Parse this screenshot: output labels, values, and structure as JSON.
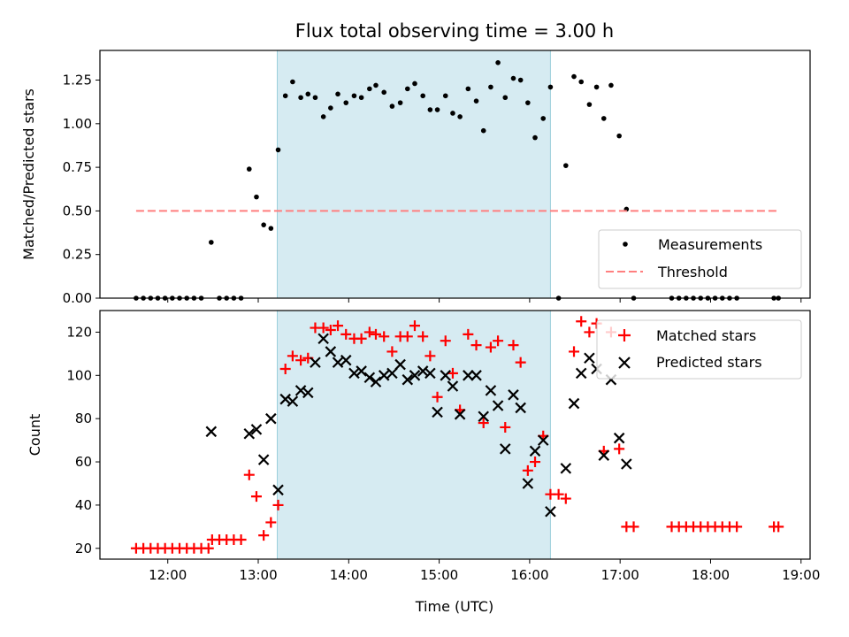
{
  "chart_data": [
    {
      "type": "scatter",
      "title": "Flux total observing time = 3.00 h",
      "ylabel": "Matched/Predicted stars",
      "ylim": [
        0,
        1.42
      ],
      "yticks": [
        0,
        0.25,
        0.5,
        0.75,
        1.0,
        1.25
      ],
      "ytick_labels": [
        "0.00",
        "0.25",
        "0.50",
        "0.75",
        "1.00",
        "1.25"
      ],
      "x_unit": "hours UTC",
      "xlim": [
        11.25,
        19.1
      ],
      "shaded_span": [
        13.21,
        16.23
      ],
      "shade_color": "#add8e6",
      "legend_position": "lower right",
      "series": [
        {
          "name": "Measurements",
          "marker": "dot",
          "color": "#000000",
          "points": [
            [
              11.65,
              0
            ],
            [
              11.73,
              0
            ],
            [
              11.81,
              0
            ],
            [
              11.89,
              0
            ],
            [
              11.97,
              0
            ],
            [
              12.05,
              0
            ],
            [
              12.13,
              0
            ],
            [
              12.21,
              0
            ],
            [
              12.29,
              0
            ],
            [
              12.37,
              0
            ],
            [
              12.48,
              0.32
            ],
            [
              12.57,
              0
            ],
            [
              12.65,
              0
            ],
            [
              12.73,
              0
            ],
            [
              12.81,
              0
            ],
            [
              12.9,
              0.74
            ],
            [
              12.98,
              0.58
            ],
            [
              13.06,
              0.42
            ],
            [
              13.14,
              0.4
            ],
            [
              13.22,
              0.85
            ],
            [
              13.3,
              1.16
            ],
            [
              13.38,
              1.24
            ],
            [
              13.47,
              1.15
            ],
            [
              13.55,
              1.17
            ],
            [
              13.63,
              1.15
            ],
            [
              13.72,
              1.04
            ],
            [
              13.8,
              1.09
            ],
            [
              13.88,
              1.17
            ],
            [
              13.97,
              1.12
            ],
            [
              14.06,
              1.16
            ],
            [
              14.14,
              1.15
            ],
            [
              14.23,
              1.2
            ],
            [
              14.3,
              1.22
            ],
            [
              14.39,
              1.18
            ],
            [
              14.48,
              1.1
            ],
            [
              14.57,
              1.12
            ],
            [
              14.65,
              1.2
            ],
            [
              14.73,
              1.23
            ],
            [
              14.82,
              1.16
            ],
            [
              14.9,
              1.08
            ],
            [
              14.98,
              1.08
            ],
            [
              15.07,
              1.16
            ],
            [
              15.15,
              1.06
            ],
            [
              15.23,
              1.04
            ],
            [
              15.32,
              1.2
            ],
            [
              15.41,
              1.13
            ],
            [
              15.49,
              0.96
            ],
            [
              15.57,
              1.21
            ],
            [
              15.65,
              1.35
            ],
            [
              15.73,
              1.15
            ],
            [
              15.82,
              1.26
            ],
            [
              15.9,
              1.25
            ],
            [
              15.98,
              1.12
            ],
            [
              16.06,
              0.92
            ],
            [
              16.15,
              1.03
            ],
            [
              16.23,
              1.21
            ],
            [
              16.32,
              0
            ],
            [
              16.4,
              0.76
            ],
            [
              16.49,
              1.27
            ],
            [
              16.57,
              1.24
            ],
            [
              16.66,
              1.11
            ],
            [
              16.74,
              1.21
            ],
            [
              16.82,
              1.03
            ],
            [
              16.9,
              1.22
            ],
            [
              16.99,
              0.93
            ],
            [
              17.07,
              0.51
            ],
            [
              17.15,
              0
            ],
            [
              17.57,
              0
            ],
            [
              17.65,
              0
            ],
            [
              17.73,
              0
            ],
            [
              17.81,
              0
            ],
            [
              17.89,
              0
            ],
            [
              17.97,
              0
            ],
            [
              18.05,
              0
            ],
            [
              18.13,
              0
            ],
            [
              18.21,
              0
            ],
            [
              18.29,
              0
            ],
            [
              18.7,
              0
            ],
            [
              18.75,
              0
            ]
          ]
        },
        {
          "name": "Threshold",
          "marker": "dashed-line",
          "color": "#ff7f7f",
          "points": [
            [
              11.65,
              0.5
            ],
            [
              18.75,
              0.5
            ]
          ]
        }
      ]
    },
    {
      "type": "scatter",
      "xlabel": "Time (UTC)",
      "ylabel": "Count",
      "ylim": [
        15,
        130
      ],
      "yticks": [
        20,
        40,
        60,
        80,
        100,
        120
      ],
      "ytick_labels": [
        "20",
        "40",
        "60",
        "80",
        "100",
        "120"
      ],
      "x_unit": "hours UTC",
      "xlim": [
        11.25,
        19.1
      ],
      "xticks": [
        12,
        13,
        14,
        15,
        16,
        17,
        18,
        19
      ],
      "xtick_labels": [
        "12:00",
        "13:00",
        "14:00",
        "15:00",
        "16:00",
        "17:00",
        "18:00",
        "19:00"
      ],
      "shaded_span": [
        13.21,
        16.23
      ],
      "shade_color": "#add8e6",
      "legend_position": "upper right",
      "series": [
        {
          "name": "Matched stars",
          "marker": "plus",
          "color": "#ff0000",
          "points": [
            [
              11.65,
              20
            ],
            [
              11.73,
              20
            ],
            [
              11.81,
              20
            ],
            [
              11.89,
              20
            ],
            [
              11.97,
              20
            ],
            [
              12.05,
              20
            ],
            [
              12.13,
              20
            ],
            [
              12.21,
              20
            ],
            [
              12.29,
              20
            ],
            [
              12.37,
              20
            ],
            [
              12.45,
              20
            ],
            [
              12.49,
              24
            ],
            [
              12.57,
              24
            ],
            [
              12.65,
              24
            ],
            [
              12.73,
              24
            ],
            [
              12.81,
              24
            ],
            [
              12.9,
              54
            ],
            [
              12.98,
              44
            ],
            [
              13.06,
              26
            ],
            [
              13.14,
              32
            ],
            [
              13.22,
              40
            ],
            [
              13.3,
              103
            ],
            [
              13.38,
              109
            ],
            [
              13.47,
              107
            ],
            [
              13.55,
              108
            ],
            [
              13.63,
              122
            ],
            [
              13.72,
              122
            ],
            [
              13.8,
              121
            ],
            [
              13.88,
              123
            ],
            [
              13.97,
              119
            ],
            [
              14.06,
              117
            ],
            [
              14.14,
              117
            ],
            [
              14.23,
              120
            ],
            [
              14.3,
              119
            ],
            [
              14.39,
              118
            ],
            [
              14.48,
              111
            ],
            [
              14.57,
              118
            ],
            [
              14.65,
              118
            ],
            [
              14.73,
              123
            ],
            [
              14.82,
              118
            ],
            [
              14.9,
              109
            ],
            [
              14.98,
              90
            ],
            [
              15.07,
              116
            ],
            [
              15.15,
              101
            ],
            [
              15.23,
              84
            ],
            [
              15.32,
              119
            ],
            [
              15.41,
              114
            ],
            [
              15.49,
              78
            ],
            [
              15.57,
              113
            ],
            [
              15.65,
              116
            ],
            [
              15.73,
              76
            ],
            [
              15.82,
              114
            ],
            [
              15.9,
              106
            ],
            [
              15.98,
              56
            ],
            [
              16.06,
              60
            ],
            [
              16.15,
              72
            ],
            [
              16.23,
              45
            ],
            [
              16.32,
              45
            ],
            [
              16.4,
              43
            ],
            [
              16.49,
              111
            ],
            [
              16.57,
              125
            ],
            [
              16.66,
              120
            ],
            [
              16.74,
              124
            ],
            [
              16.82,
              65
            ],
            [
              16.9,
              120
            ],
            [
              16.99,
              66
            ],
            [
              17.07,
              30
            ],
            [
              17.15,
              30
            ],
            [
              17.57,
              30
            ],
            [
              17.65,
              30
            ],
            [
              17.73,
              30
            ],
            [
              17.81,
              30
            ],
            [
              17.89,
              30
            ],
            [
              17.97,
              30
            ],
            [
              18.05,
              30
            ],
            [
              18.13,
              30
            ],
            [
              18.21,
              30
            ],
            [
              18.29,
              30
            ],
            [
              18.7,
              30
            ],
            [
              18.75,
              30
            ]
          ]
        },
        {
          "name": "Predicted stars",
          "marker": "x",
          "color": "#000000",
          "points": [
            [
              12.48,
              74
            ],
            [
              12.9,
              73
            ],
            [
              12.98,
              75
            ],
            [
              13.06,
              61
            ],
            [
              13.14,
              80
            ],
            [
              13.22,
              47
            ],
            [
              13.3,
              89
            ],
            [
              13.38,
              88
            ],
            [
              13.47,
              93
            ],
            [
              13.55,
              92
            ],
            [
              13.63,
              106
            ],
            [
              13.72,
              117
            ],
            [
              13.8,
              111
            ],
            [
              13.88,
              106
            ],
            [
              13.97,
              107
            ],
            [
              14.06,
              101
            ],
            [
              14.14,
              102
            ],
            [
              14.23,
              99
            ],
            [
              14.3,
              97
            ],
            [
              14.39,
              100
            ],
            [
              14.48,
              101
            ],
            [
              14.57,
              105
            ],
            [
              14.65,
              98
            ],
            [
              14.73,
              100
            ],
            [
              14.82,
              102
            ],
            [
              14.9,
              101
            ],
            [
              14.98,
              83
            ],
            [
              15.07,
              100
            ],
            [
              15.15,
              95
            ],
            [
              15.23,
              82
            ],
            [
              15.32,
              100
            ],
            [
              15.41,
              100
            ],
            [
              15.49,
              81
            ],
            [
              15.57,
              93
            ],
            [
              15.65,
              86
            ],
            [
              15.73,
              66
            ],
            [
              15.82,
              91
            ],
            [
              15.9,
              85
            ],
            [
              15.98,
              50
            ],
            [
              16.06,
              65
            ],
            [
              16.15,
              70
            ],
            [
              16.23,
              37
            ],
            [
              16.4,
              57
            ],
            [
              16.49,
              87
            ],
            [
              16.57,
              101
            ],
            [
              16.66,
              108
            ],
            [
              16.74,
              103
            ],
            [
              16.82,
              63
            ],
            [
              16.9,
              98
            ],
            [
              16.99,
              71
            ],
            [
              17.07,
              59
            ]
          ]
        }
      ]
    }
  ]
}
